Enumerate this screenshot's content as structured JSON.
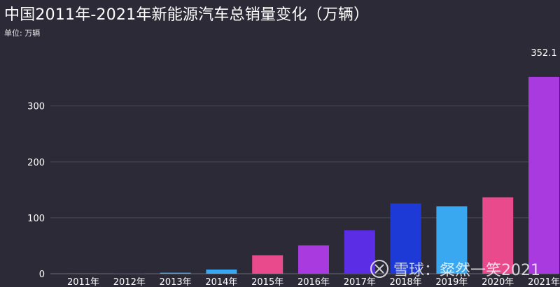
{
  "header": {
    "title": "中国2011年-2021年新能源汽车总销量变化（万辆）",
    "unit_label": "单位: 万辆"
  },
  "watermark": {
    "text": "雪球：粲然一笑2021"
  },
  "chart_data": {
    "type": "bar",
    "title": "中国2011年-2021年新能源汽车总销量变化（万辆）",
    "categories": [
      "2011年",
      "2012年",
      "2013年",
      "2014年",
      "2015年",
      "2016年",
      "2017年",
      "2018年",
      "2019年",
      "2020年",
      "2021年"
    ],
    "values": [
      0.8,
      1.3,
      1.8,
      7.5,
      33.1,
      50.7,
      77.7,
      125.6,
      120.6,
      136.7,
      352.1
    ],
    "colors": [
      "#5b2ee6",
      "#1e3ad6",
      "#3aa8f0",
      "#3aa8f0",
      "#e84a8c",
      "#a93ae0",
      "#5b2ee6",
      "#1e3ad6",
      "#3aa8f0",
      "#e84a8c",
      "#a93ae0"
    ],
    "data_labels": [
      {
        "index": 10,
        "text": "352.1"
      }
    ],
    "ylim": [
      0,
      352.1
    ],
    "yticks": [
      0,
      100,
      200,
      300
    ],
    "grid": true,
    "xlabel": "",
    "ylabel": ""
  }
}
